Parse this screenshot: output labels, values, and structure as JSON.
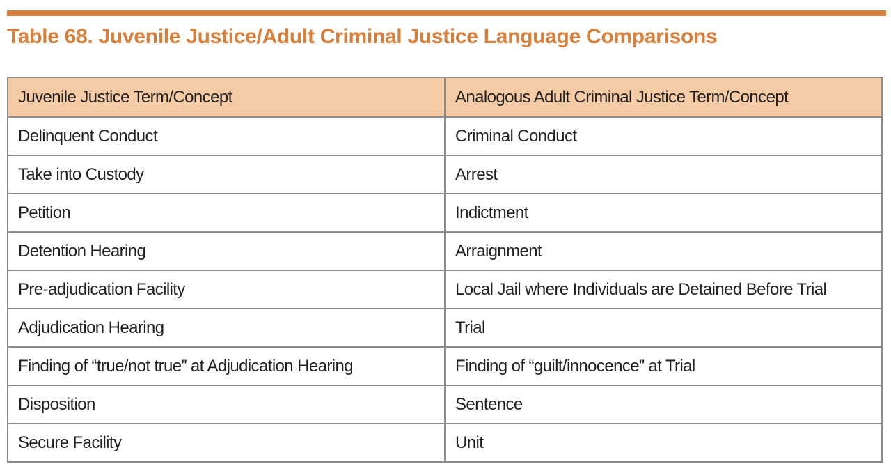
{
  "page": {
    "title": "Table 68. Juvenile Justice/Adult Criminal Justice Language Comparisons"
  },
  "colors": {
    "accent_orange": "#d5803d",
    "header_background": "#f4cba4",
    "table_border_inner": "#8c8c8c",
    "table_border_outer": "#707070",
    "text": "#231f20",
    "page_background": "#ffffff"
  },
  "table": {
    "headers": [
      "Juvenile Justice Term/Concept",
      "Analogous Adult Criminal Justice Term/Concept"
    ],
    "rows": [
      [
        "Delinquent Conduct",
        "Criminal Conduct"
      ],
      [
        "Take into Custody",
        "Arrest"
      ],
      [
        "Petition",
        "Indictment"
      ],
      [
        "Detention Hearing",
        "Arraignment"
      ],
      [
        "Pre-adjudication Facility",
        "Local Jail where Individuals are Detained Before Trial"
      ],
      [
        "Adjudication Hearing",
        "Trial"
      ],
      [
        "Finding of “true/not true” at Adjudication Hearing",
        "Finding of “guilt/innocence” at Trial"
      ],
      [
        "Disposition",
        "Sentence"
      ],
      [
        "Secure Facility",
        "Unit"
      ]
    ]
  }
}
